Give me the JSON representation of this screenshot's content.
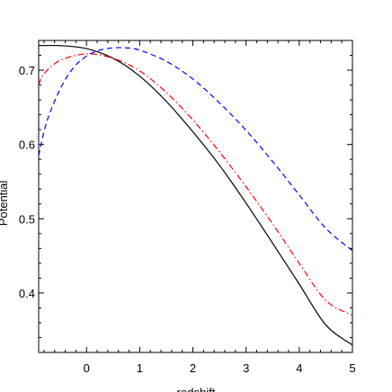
{
  "chart_data": {
    "type": "line",
    "title": "",
    "xlabel": "redshift",
    "ylabel": "Potential",
    "xlim": [
      -0.9,
      5
    ],
    "ylim": [
      0.32,
      0.74
    ],
    "x_ticks": [
      0,
      1,
      2,
      3,
      4,
      5
    ],
    "x_tick_labels": [
      "0",
      "1",
      "2",
      "3",
      "4",
      "5"
    ],
    "y_ticks": [
      0.4,
      0.5,
      0.6,
      0.7
    ],
    "y_tick_labels": [
      "0.4",
      "0.5",
      "0.6",
      "0.7"
    ],
    "grid": false,
    "legend": "none",
    "series": [
      {
        "color": "#000000",
        "dash": "solid",
        "x": [
          -0.9,
          -0.5,
          0,
          0.5,
          1,
          1.5,
          2,
          2.5,
          3,
          3.5,
          4,
          4.5,
          5
        ],
        "y": [
          0.733,
          0.733,
          0.729,
          0.716,
          0.692,
          0.658,
          0.617,
          0.572,
          0.521,
          0.467,
          0.412,
          0.357,
          0.33
        ]
      },
      {
        "color": "#ff0000",
        "dash": "dashdot",
        "x": [
          -0.9,
          -0.8,
          -0.5,
          0,
          0.5,
          1,
          1.5,
          2,
          2.5,
          3,
          3.5,
          4,
          4.5,
          5
        ],
        "y": [
          0.68,
          0.695,
          0.713,
          0.722,
          0.716,
          0.699,
          0.67,
          0.633,
          0.59,
          0.543,
          0.493,
          0.44,
          0.39,
          0.37
        ]
      },
      {
        "color": "#0000ff",
        "dash": "dashed",
        "x": [
          -0.9,
          -0.75,
          -0.5,
          -0.25,
          0,
          0.25,
          0.5,
          0.75,
          1,
          1.5,
          2,
          2.5,
          3,
          3.5,
          4,
          4.5,
          5
        ],
        "y": [
          0.585,
          0.63,
          0.674,
          0.703,
          0.719,
          0.727,
          0.73,
          0.73,
          0.727,
          0.712,
          0.688,
          0.656,
          0.619,
          0.577,
          0.532,
          0.487,
          0.457
        ]
      }
    ]
  }
}
